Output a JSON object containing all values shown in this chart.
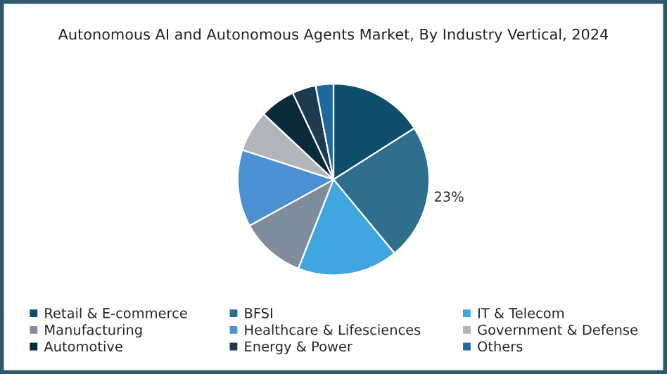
{
  "chart_data": {
    "type": "pie",
    "title": "Autonomous AI and Autonomous Agents Market, By Industry Vertical, 2024",
    "categories": [
      "Retail & E-commerce",
      "BFSI",
      "IT & Telecom",
      "Manufacturing",
      "Healthcare & Lifesciences",
      "Government & Defense",
      "Automotive",
      "Energy & Power",
      "Others"
    ],
    "values": [
      16,
      23,
      17,
      11,
      13,
      7,
      6,
      4,
      3
    ],
    "value_labels": [
      null,
      "23%",
      null,
      null,
      null,
      null,
      null,
      null,
      null
    ],
    "colors": [
      "#0d4f6b",
      "#2e6f8e",
      "#3fa6e0",
      "#7f8c9b",
      "#4b90d0",
      "#b0b6bc",
      "#0a2b3a",
      "#1f3a4e",
      "#1e6aa0"
    ],
    "legend": "bottom"
  }
}
